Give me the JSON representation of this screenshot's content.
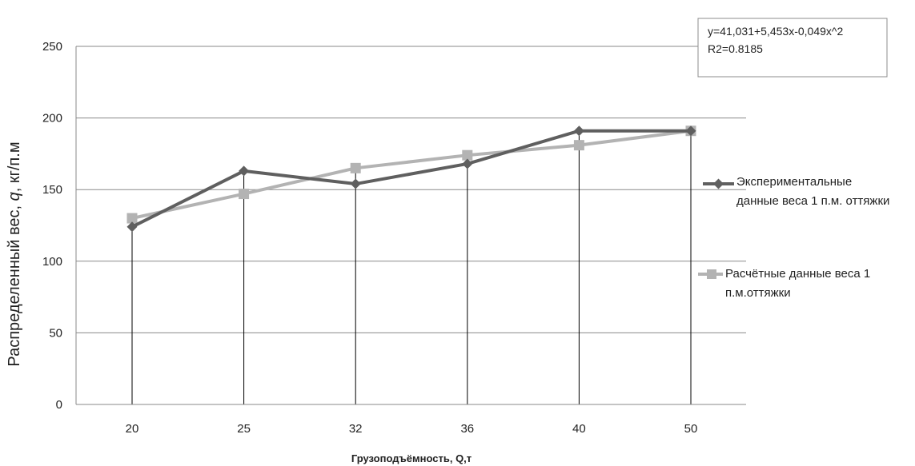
{
  "chart_data": {
    "type": "line",
    "title": "",
    "xlabel": "Грузоподъёмность, Q,т",
    "ylabel_prefix": "Распределенный вес, ",
    "ylabel_var": "q",
    "ylabel_suffix": ", кг/п.м",
    "categories": [
      "20",
      "25",
      "32",
      "36",
      "40",
      "50"
    ],
    "ylim": [
      0,
      250
    ],
    "yticks": [
      0,
      50,
      100,
      150,
      200,
      250
    ],
    "grid": "horizontal",
    "drop_lines": true,
    "legend_position": "right",
    "series": [
      {
        "name_lines": [
          "Экспериментальные",
          "данные веса 1 п.м. оттяжки"
        ],
        "values": [
          124,
          163,
          154,
          168,
          191,
          191
        ],
        "marker": "diamond",
        "color": "#5f5f5f"
      },
      {
        "name_lines": [
          "Расчётные данные веса 1",
          "п.м.оттяжки"
        ],
        "values": [
          130,
          147,
          165,
          174,
          181,
          191
        ],
        "marker": "square",
        "color": "#b3b3b3"
      }
    ],
    "annotation": {
      "lines": [
        "y=41,031+5,453x-0,049x^2",
        "R2=0.8185"
      ]
    }
  }
}
